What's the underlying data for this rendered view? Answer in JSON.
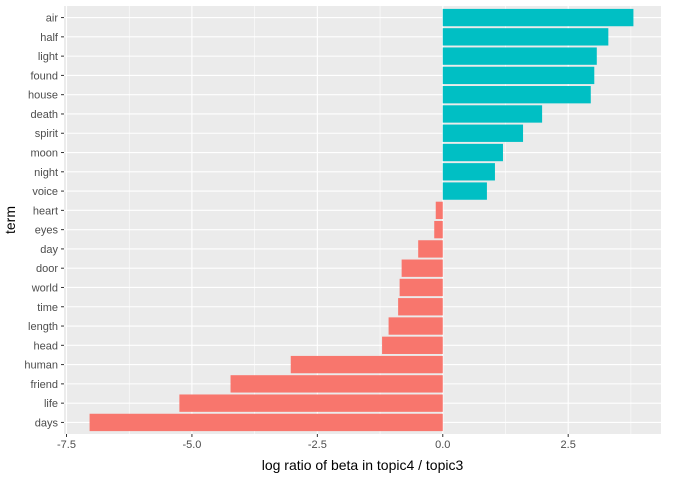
{
  "chart_data": {
    "type": "bar",
    "orientation": "horizontal",
    "xlabel": "log ratio of beta in topic4 / topic3",
    "ylabel": "term",
    "xlim": [
      -7.5,
      4.3
    ],
    "xticks": [
      -7.5,
      -5.0,
      -2.5,
      0.0,
      2.5
    ],
    "xtick_labels": [
      "-7.5",
      "-5.0",
      "-2.5",
      "0.0",
      "2.5"
    ],
    "grid": true,
    "legend": "none",
    "colors": {
      "positive": "#00BFC4",
      "negative": "#F8766D",
      "panel": "#EBEBEB",
      "grid": "#FFFFFF"
    },
    "categories": [
      "air",
      "half",
      "light",
      "found",
      "house",
      "death",
      "spirit",
      "moon",
      "night",
      "voice",
      "heart",
      "eyes",
      "day",
      "door",
      "world",
      "time",
      "length",
      "head",
      "human",
      "friend",
      "life",
      "days"
    ],
    "values": [
      3.8,
      3.3,
      3.07,
      3.02,
      2.95,
      1.98,
      1.6,
      1.2,
      1.04,
      0.88,
      -0.14,
      -0.17,
      -0.49,
      -0.82,
      -0.86,
      -0.89,
      -1.08,
      -1.21,
      -3.03,
      -4.23,
      -5.25,
      -7.04
    ]
  }
}
